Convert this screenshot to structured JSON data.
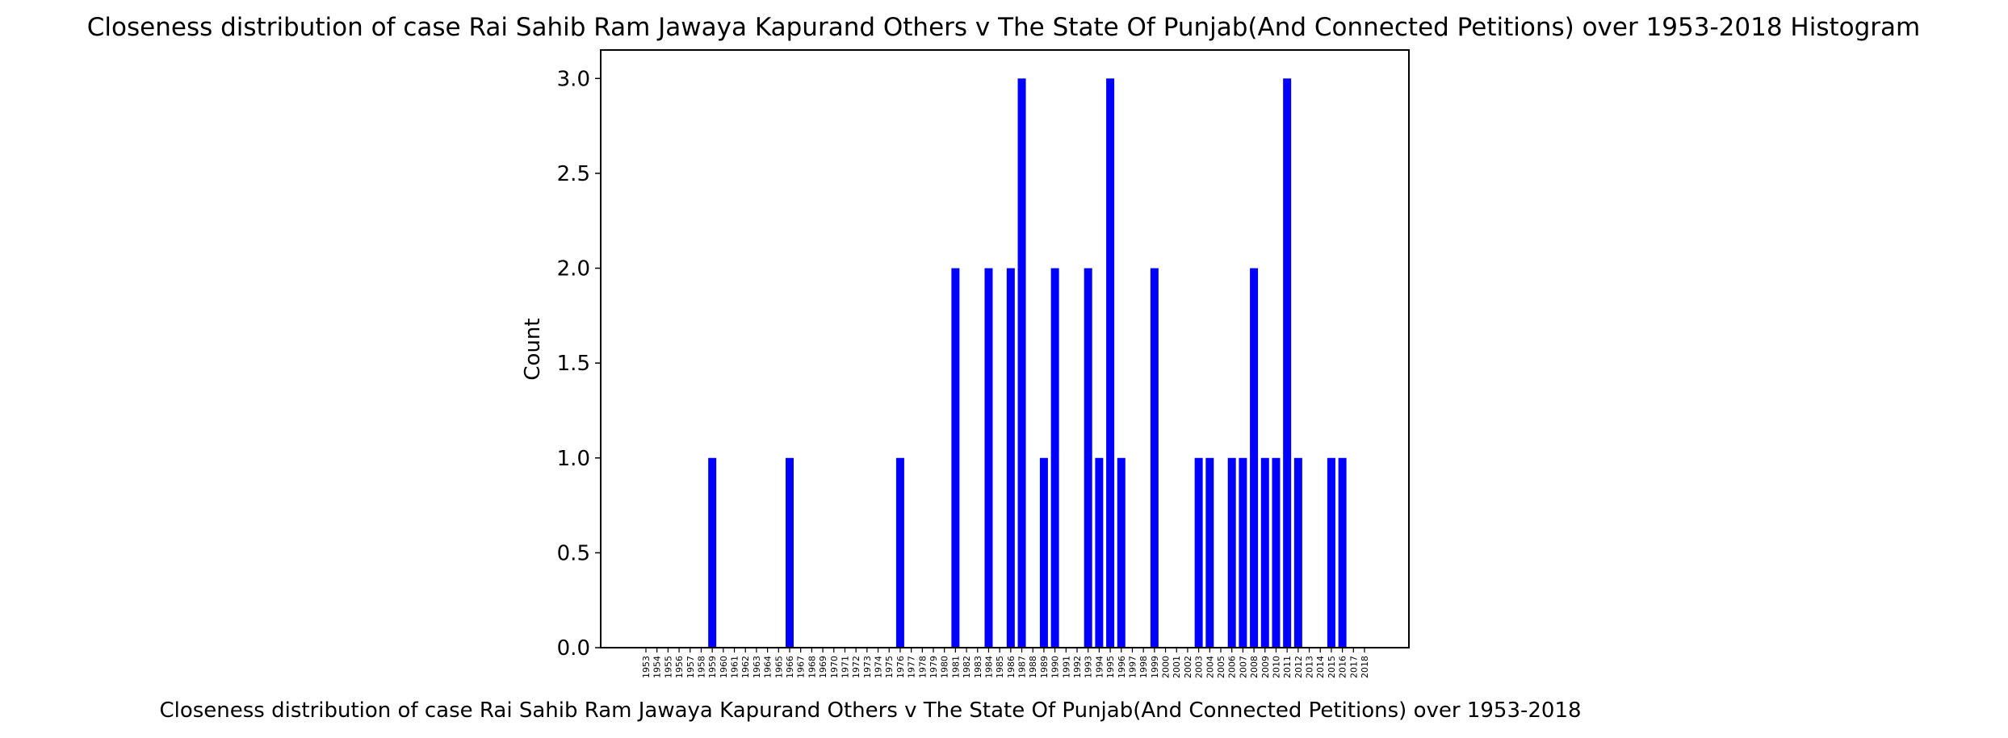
{
  "chart_data": {
    "type": "bar",
    "title": "Closeness distribution of case Rai Sahib Ram Jawaya Kapurand Others v The State Of Punjab(And Connected Petitions) over 1953-2018 Histogram",
    "xlabel": "Closeness distribution of case Rai Sahib Ram Jawaya Kapurand Others v The State Of Punjab(And Connected Petitions) over 1953-2018",
    "ylabel": "Count",
    "ylim": [
      0,
      3.15
    ],
    "yticks": [
      "0.0",
      "0.5",
      "1.0",
      "1.5",
      "2.0",
      "2.5",
      "3.0"
    ],
    "bar_color": "#0000ff",
    "categories": [
      "1953",
      "1954",
      "1955",
      "1956",
      "1957",
      "1958",
      "1959",
      "1960",
      "1961",
      "1962",
      "1963",
      "1964",
      "1965",
      "1966",
      "1967",
      "1968",
      "1969",
      "1970",
      "1971",
      "1972",
      "1973",
      "1974",
      "1975",
      "1976",
      "1977",
      "1978",
      "1979",
      "1980",
      "1981",
      "1982",
      "1983",
      "1984",
      "1985",
      "1986",
      "1987",
      "1988",
      "1989",
      "1990",
      "1991",
      "1992",
      "1993",
      "1994",
      "1995",
      "1996",
      "1997",
      "1998",
      "1999",
      "2000",
      "2001",
      "2002",
      "2003",
      "2004",
      "2005",
      "2006",
      "2007",
      "2008",
      "2009",
      "2010",
      "2011",
      "2012",
      "2013",
      "2014",
      "2015",
      "2016",
      "2017",
      "2018"
    ],
    "values": [
      0,
      0,
      0,
      0,
      0,
      0,
      1,
      0,
      0,
      0,
      0,
      0,
      0,
      1,
      0,
      0,
      0,
      0,
      0,
      0,
      0,
      0,
      0,
      1,
      0,
      0,
      0,
      0,
      2,
      0,
      0,
      2,
      0,
      2,
      3,
      0,
      1,
      2,
      0,
      0,
      2,
      1,
      3,
      1,
      0,
      0,
      2,
      0,
      0,
      0,
      1,
      1,
      0,
      1,
      1,
      2,
      1,
      1,
      3,
      1,
      0,
      0,
      1,
      1,
      0,
      0
    ],
    "grid": false
  }
}
